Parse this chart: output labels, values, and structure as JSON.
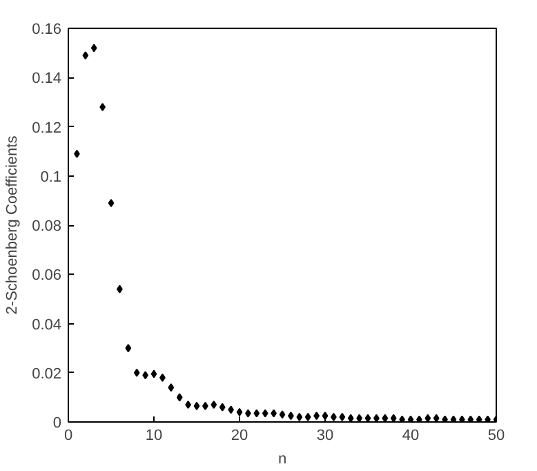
{
  "chart_data": {
    "type": "scatter",
    "xlabel": "n",
    "ylabel": "2-Schoenberg Coefficients",
    "x": [
      1,
      2,
      3,
      4,
      5,
      6,
      7,
      8,
      9,
      10,
      11,
      12,
      13,
      14,
      15,
      16,
      17,
      18,
      19,
      20,
      21,
      22,
      23,
      24,
      25,
      26,
      27,
      28,
      29,
      30,
      31,
      32,
      33,
      34,
      35,
      36,
      37,
      38,
      39,
      40,
      41,
      42,
      43,
      44,
      45,
      46,
      47,
      48,
      49,
      50
    ],
    "values": [
      0.109,
      0.149,
      0.152,
      0.128,
      0.089,
      0.054,
      0.03,
      0.02,
      0.019,
      0.0195,
      0.018,
      0.014,
      0.01,
      0.007,
      0.0065,
      0.0065,
      0.007,
      0.006,
      0.005,
      0.004,
      0.0035,
      0.0035,
      0.0035,
      0.0035,
      0.003,
      0.0025,
      0.002,
      0.002,
      0.0025,
      0.0025,
      0.002,
      0.002,
      0.0015,
      0.0015,
      0.0015,
      0.0015,
      0.0015,
      0.0015,
      0.001,
      0.001,
      0.001,
      0.0015,
      0.0015,
      0.001,
      0.001,
      0.001,
      0.001,
      0.001,
      0.001,
      0.001
    ],
    "color": "#000000",
    "marker": "diamond",
    "grid": false,
    "xlim": [
      0,
      50
    ],
    "xticks": [
      0,
      10,
      20,
      30,
      40,
      50
    ],
    "ylim": [
      0,
      0.16
    ],
    "yticks": [
      0,
      0.02,
      0.04,
      0.06,
      0.08,
      0.1,
      0.12,
      0.14,
      0.16
    ]
  }
}
